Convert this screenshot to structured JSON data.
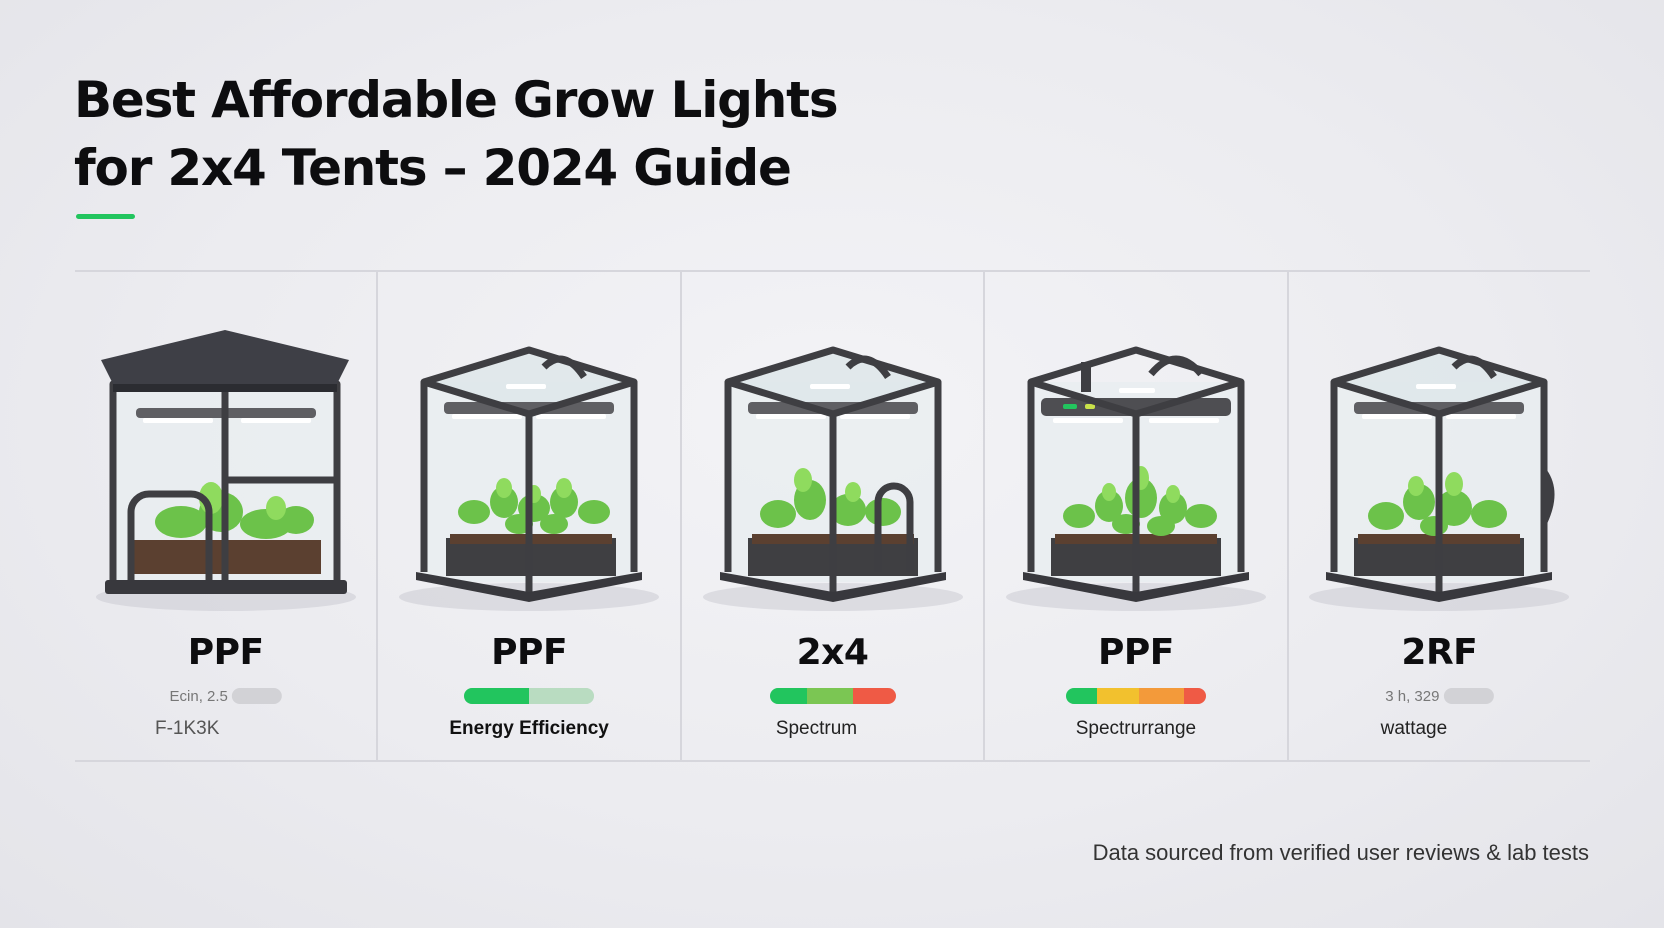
{
  "page": {
    "title_line1": "Best Affordable Grow Lights",
    "title_line2": "for 2x4 Tents – 2024 Guide",
    "source_note": "Data sourced from verified user reviews & lab tests"
  },
  "colors": {
    "accent": "#22c55e",
    "green": "#22c55e",
    "light_green": "#7bc653",
    "yellow": "#f2c12e",
    "orange": "#f39a3a",
    "red": "#ef5a45",
    "grey": "#d0d0d4"
  },
  "cards": [
    {
      "icon": "grow-tent-icon",
      "metric": "PPF",
      "bar_text": "Ecin, 2.5",
      "caption": "F-1K3K"
    },
    {
      "icon": "grow-tent-icon",
      "metric": "PPF",
      "caption": "Energy Efficiency"
    },
    {
      "icon": "grow-tent-icon",
      "metric": "2x4",
      "caption": "Spectrum"
    },
    {
      "icon": "grow-tent-icon",
      "metric": "PPF",
      "caption": "Spectrurrange"
    },
    {
      "icon": "grow-tent-icon",
      "metric": "2RF",
      "bar_text": "3 h, 329",
      "caption": "wattage"
    }
  ]
}
